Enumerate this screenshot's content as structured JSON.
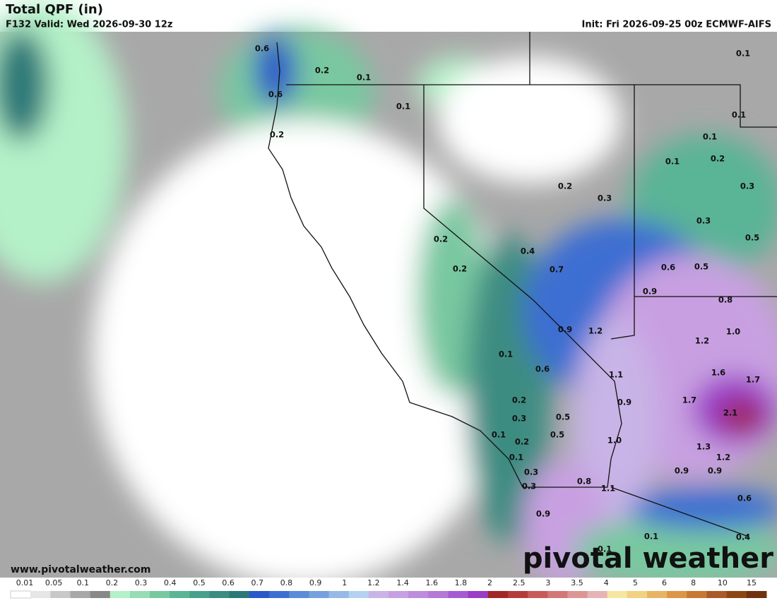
{
  "header": {
    "title": "Total QPF (in)",
    "valid": "F132 Valid: Wed 2026-09-30 12z",
    "init": "Init: Fri 2026-09-25 00z ECMWF-AIFS"
  },
  "map_labels": [
    "0.6",
    "0.2",
    "0.1",
    "0.6",
    "0.1",
    "0.2",
    "0.1",
    "0.1",
    "0.1",
    "0.2",
    "0.1",
    "0.3",
    "0.2",
    "0.3",
    "0.3",
    "0.5",
    "0.2",
    "0.4",
    "0.2",
    "0.7",
    "0.6",
    "0.5",
    "0.9",
    "0.8",
    "0.9",
    "1.2",
    "1.0",
    "1.2",
    "0.1",
    "0.6",
    "1.6",
    "1.1",
    "1.7",
    "0.2",
    "0.9",
    "1.7",
    "2.1",
    "0.3",
    "0.5",
    "0.5",
    "0.1",
    "0.2",
    "1.0",
    "1.3",
    "1.2",
    "0.1",
    "0.3",
    "0.9",
    "0.9",
    "0.3",
    "0.8",
    "1.1",
    "0.6",
    "0.9",
    "0.1",
    "0.4",
    "0.1"
  ],
  "footer": {
    "url": "www.pivotalweather.com",
    "logo": "pivotal weather"
  },
  "colorbar": {
    "labels": [
      "0.01",
      "0.05",
      "0.1",
      "0.2",
      "0.3",
      "0.4",
      "0.5",
      "0.6",
      "0.7",
      "0.8",
      "0.9",
      "1",
      "1.2",
      "1.4",
      "1.6",
      "1.8",
      "2",
      "2.5",
      "3",
      "3.5",
      "4",
      "5",
      "6",
      "8",
      "10",
      "15"
    ],
    "colors": [
      "#ffffff",
      "#e6e6e6",
      "#c8c8c8",
      "#a8a8a8",
      "#888888",
      "#b4f0c8",
      "#96dcb4",
      "#78c8a0",
      "#5ab496",
      "#46a08c",
      "#3c8c82",
      "#2a7878",
      "#2a58c8",
      "#3c6ed2",
      "#5a8cd7",
      "#78a0dc",
      "#96b9e6",
      "#b4d2f0",
      "#c8b4e6",
      "#c8a0e1",
      "#be8cdc",
      "#b478d7",
      "#a55ad2",
      "#9b3cc8",
      "#a02828",
      "#b43c3c",
      "#c85a5a",
      "#d27878",
      "#dc9696",
      "#e6b4b4",
      "#f5e6a0",
      "#f0d282",
      "#e6b464",
      "#dc9646",
      "#c87832",
      "#aa5a28",
      "#8c4614",
      "#6e3210"
    ]
  }
}
